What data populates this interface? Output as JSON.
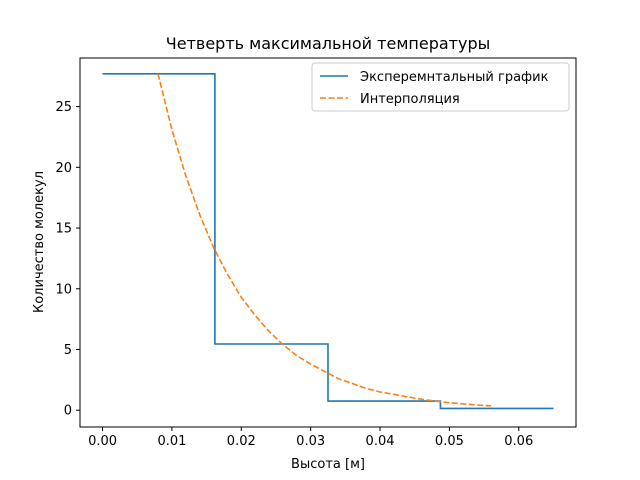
{
  "chart_data": {
    "type": "line",
    "title": "Четверть максимальной температуры",
    "xlabel": "Высота [м]",
    "ylabel": "Количество молекул",
    "xlim": [
      -0.00325,
      0.06825
    ],
    "ylim": [
      -1.38,
      29.0
    ],
    "xticks": [
      0.0,
      0.01,
      0.02,
      0.03,
      0.04,
      0.05,
      0.06
    ],
    "xtick_labels": [
      "0.00",
      "0.01",
      "0.02",
      "0.03",
      "0.04",
      "0.05",
      "0.06"
    ],
    "yticks": [
      0,
      5,
      10,
      15,
      20,
      25
    ],
    "ytick_labels": [
      "0",
      "5",
      "10",
      "15",
      "20",
      "25"
    ],
    "grid": false,
    "legend_position": "top-right",
    "series": [
      {
        "name": "Эксперемнтальный график",
        "color": "#1f77b4",
        "style": "solid",
        "x": [
          0.0,
          0.0162,
          0.0162,
          0.0325,
          0.0325,
          0.0487,
          0.0487,
          0.065
        ],
        "y": [
          27.7,
          27.7,
          5.45,
          5.45,
          0.75,
          0.75,
          0.15,
          0.15
        ]
      },
      {
        "name": "Интерполяция",
        "color": "#ff7f0e",
        "style": "dashed",
        "x": [
          0.008,
          0.01,
          0.012,
          0.014,
          0.016,
          0.018,
          0.02,
          0.022,
          0.024,
          0.026,
          0.028,
          0.03,
          0.032,
          0.034,
          0.036,
          0.038,
          0.04,
          0.042,
          0.044,
          0.046,
          0.048,
          0.05,
          0.052,
          0.054,
          0.056
        ],
        "y": [
          27.7,
          23.1,
          19.3,
          16.1,
          13.4,
          11.2,
          9.3,
          7.8,
          6.5,
          5.4,
          4.5,
          3.8,
          3.2,
          2.6,
          2.2,
          1.8,
          1.5,
          1.3,
          1.1,
          0.9,
          0.75,
          0.62,
          0.52,
          0.43,
          0.36
        ]
      }
    ]
  }
}
